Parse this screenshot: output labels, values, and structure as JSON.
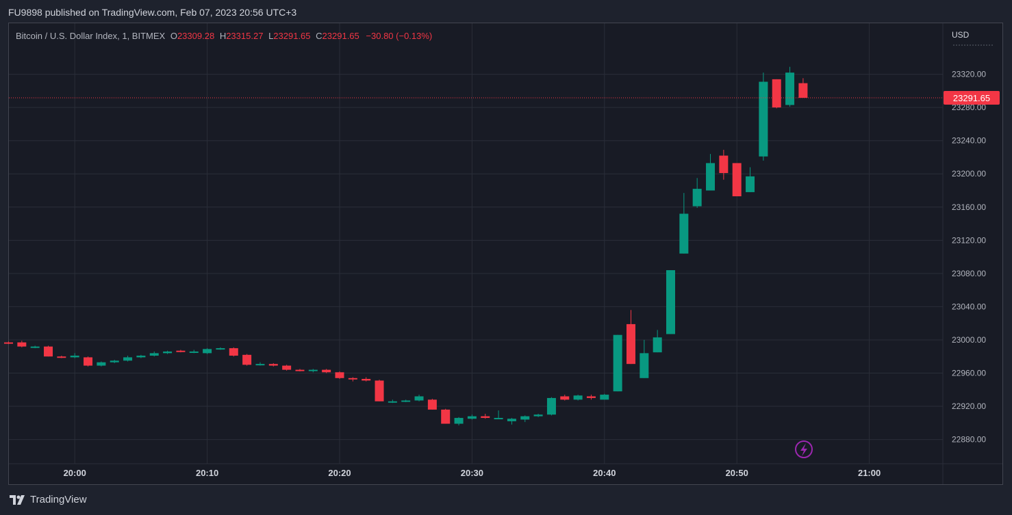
{
  "header": {
    "publish_line": "FU9898 published on TradingView.com, Feb 07, 2023 20:56 UTC+3"
  },
  "legend": {
    "symbol": "Bitcoin / U.S. Dollar Index, 1, BITMEX",
    "o_label": "O",
    "o_value": "23309.28",
    "h_label": "H",
    "h_value": "23315.27",
    "l_label": "L",
    "l_value": "23291.65",
    "c_label": "C",
    "c_value": "23291.65",
    "change": "−30.80 (−0.13%)"
  },
  "price_axis": {
    "currency": "USD",
    "last_price_label": "23291.65"
  },
  "footer": {
    "brand": "TradingView"
  },
  "colors": {
    "up": "#089981",
    "down": "#f23645",
    "grid": "#2a2e39",
    "accent_icon": "#9c27b0"
  },
  "icons": {
    "lightning": "lightning-icon",
    "logo": "tradingview-logo-icon"
  },
  "chart_data": {
    "type": "candlestick",
    "y_ticks": [
      23320,
      23280,
      23240,
      23200,
      23160,
      23120,
      23080,
      23040,
      23000,
      22960,
      22920,
      22880
    ],
    "y_tick_labels": [
      "23320.00",
      "23280.00",
      "23240.00",
      "23200.00",
      "23160.00",
      "23120.00",
      "23080.00",
      "23040.00",
      "23000.00",
      "22960.00",
      "22920.00",
      "22880.00"
    ],
    "x_ticks": [
      "20:00",
      "20:10",
      "20:20",
      "20:30",
      "20:40",
      "20:50",
      "21:00"
    ],
    "last_price": 23291.65,
    "candles": [
      {
        "t": "19:55",
        "o": 22997,
        "h": 22998,
        "l": 22995,
        "c": 22996
      },
      {
        "t": "19:56",
        "o": 22997,
        "h": 22999,
        "l": 22991,
        "c": 22992
      },
      {
        "t": "19:57",
        "o": 22991,
        "h": 22993,
        "l": 22990,
        "c": 22992
      },
      {
        "t": "19:58",
        "o": 22992,
        "h": 22993,
        "l": 22980,
        "c": 22980
      },
      {
        "t": "19:59",
        "o": 22980,
        "h": 22981,
        "l": 22978,
        "c": 22979
      },
      {
        "t": "20:00",
        "o": 22979,
        "h": 22984,
        "l": 22978,
        "c": 22981
      },
      {
        "t": "20:01",
        "o": 22979,
        "h": 22980,
        "l": 22968,
        "c": 22969
      },
      {
        "t": "20:02",
        "o": 22969,
        "h": 22974,
        "l": 22968,
        "c": 22973
      },
      {
        "t": "20:03",
        "o": 22973,
        "h": 22976,
        "l": 22972,
        "c": 22975
      },
      {
        "t": "20:04",
        "o": 22975,
        "h": 22981,
        "l": 22974,
        "c": 22979
      },
      {
        "t": "20:05",
        "o": 22979,
        "h": 22982,
        "l": 22978,
        "c": 22981
      },
      {
        "t": "20:06",
        "o": 22981,
        "h": 22986,
        "l": 22980,
        "c": 22984
      },
      {
        "t": "20:07",
        "o": 22984,
        "h": 22987,
        "l": 22983,
        "c": 22986
      },
      {
        "t": "20:08",
        "o": 22987,
        "h": 22988,
        "l": 22985,
        "c": 22986
      },
      {
        "t": "20:09",
        "o": 22985,
        "h": 22988,
        "l": 22984,
        "c": 22986
      },
      {
        "t": "20:10",
        "o": 22984,
        "h": 22990,
        "l": 22983,
        "c": 22989
      },
      {
        "t": "20:11",
        "o": 22989,
        "h": 22991,
        "l": 22988,
        "c": 22990
      },
      {
        "t": "20:12",
        "o": 22990,
        "h": 22991,
        "l": 22980,
        "c": 22981
      },
      {
        "t": "20:13",
        "o": 22982,
        "h": 22983,
        "l": 22969,
        "c": 22970
      },
      {
        "t": "20:14",
        "o": 22971,
        "h": 22973,
        "l": 22969,
        "c": 22971
      },
      {
        "t": "20:15",
        "o": 22971,
        "h": 22972,
        "l": 22968,
        "c": 22969
      },
      {
        "t": "20:16",
        "o": 22969,
        "h": 22970,
        "l": 22963,
        "c": 22964
      },
      {
        "t": "20:17",
        "o": 22964,
        "h": 22965,
        "l": 22962,
        "c": 22963
      },
      {
        "t": "20:18",
        "o": 22963,
        "h": 22965,
        "l": 22961,
        "c": 22964
      },
      {
        "t": "20:19",
        "o": 22964,
        "h": 22965,
        "l": 22960,
        "c": 22961
      },
      {
        "t": "20:20",
        "o": 22961,
        "h": 22962,
        "l": 22953,
        "c": 22954
      },
      {
        "t": "20:21",
        "o": 22954,
        "h": 22955,
        "l": 22950,
        "c": 22953
      },
      {
        "t": "20:22",
        "o": 22953,
        "h": 22955,
        "l": 22950,
        "c": 22951
      },
      {
        "t": "20:23",
        "o": 22951,
        "h": 22952,
        "l": 22926,
        "c": 22926
      },
      {
        "t": "20:24",
        "o": 22926,
        "h": 22928,
        "l": 22924,
        "c": 22926
      },
      {
        "t": "20:25",
        "o": 22926,
        "h": 22928,
        "l": 22925,
        "c": 22927
      },
      {
        "t": "20:26",
        "o": 22927,
        "h": 22934,
        "l": 22926,
        "c": 22932
      },
      {
        "t": "20:27",
        "o": 22928,
        "h": 22929,
        "l": 22916,
        "c": 22916
      },
      {
        "t": "20:28",
        "o": 22916,
        "h": 22917,
        "l": 22899,
        "c": 22899
      },
      {
        "t": "20:29",
        "o": 22899,
        "h": 22907,
        "l": 22897,
        "c": 22906
      },
      {
        "t": "20:30",
        "o": 22905,
        "h": 22910,
        "l": 22904,
        "c": 22908
      },
      {
        "t": "20:31",
        "o": 22908,
        "h": 22911,
        "l": 22905,
        "c": 22906
      },
      {
        "t": "20:32",
        "o": 22906,
        "h": 22915,
        "l": 22905,
        "c": 22906
      },
      {
        "t": "20:33",
        "o": 22902,
        "h": 22906,
        "l": 22898,
        "c": 22905
      },
      {
        "t": "20:34",
        "o": 22904,
        "h": 22909,
        "l": 22901,
        "c": 22908
      },
      {
        "t": "20:35",
        "o": 22908,
        "h": 22911,
        "l": 22907,
        "c": 22910
      },
      {
        "t": "20:36",
        "o": 22910,
        "h": 22931,
        "l": 22909,
        "c": 22930
      },
      {
        "t": "20:37",
        "o": 22932,
        "h": 22934,
        "l": 22927,
        "c": 22928
      },
      {
        "t": "20:38",
        "o": 22928,
        "h": 22934,
        "l": 22927,
        "c": 22933
      },
      {
        "t": "20:39",
        "o": 22932,
        "h": 22934,
        "l": 22928,
        "c": 22930
      },
      {
        "t": "20:40",
        "o": 22928,
        "h": 22935,
        "l": 22928,
        "c": 22934
      },
      {
        "t": "20:41",
        "o": 22938,
        "h": 23006,
        "l": 22938,
        "c": 23006
      },
      {
        "t": "20:42",
        "o": 23019,
        "h": 23036,
        "l": 22971,
        "c": 22971
      },
      {
        "t": "20:43",
        "o": 22954,
        "h": 23000,
        "l": 22954,
        "c": 22984
      },
      {
        "t": "20:44",
        "o": 22985,
        "h": 23012,
        "l": 22985,
        "c": 23003
      },
      {
        "t": "20:45",
        "o": 23007,
        "h": 23084,
        "l": 23007,
        "c": 23084
      },
      {
        "t": "20:46",
        "o": 23104,
        "h": 23177,
        "l": 23104,
        "c": 23152
      },
      {
        "t": "20:47",
        "o": 23161,
        "h": 23195,
        "l": 23159,
        "c": 23182
      },
      {
        "t": "20:48",
        "o": 23180,
        "h": 23224,
        "l": 23180,
        "c": 23213
      },
      {
        "t": "20:49",
        "o": 23222,
        "h": 23229,
        "l": 23193,
        "c": 23201
      },
      {
        "t": "20:50",
        "o": 23213,
        "h": 23213,
        "l": 23173,
        "c": 23173
      },
      {
        "t": "20:51",
        "o": 23178,
        "h": 23208,
        "l": 23178,
        "c": 23197
      },
      {
        "t": "20:52",
        "o": 23221,
        "h": 23322,
        "l": 23216,
        "c": 23311
      },
      {
        "t": "20:53",
        "o": 23314,
        "h": 23314,
        "l": 23279,
        "c": 23280
      },
      {
        "t": "20:54",
        "o": 23283,
        "h": 23329,
        "l": 23281,
        "c": 23322
      },
      {
        "t": "20:55",
        "o": 23309.28,
        "h": 23315.27,
        "l": 23291.65,
        "c": 23291.65
      }
    ]
  }
}
